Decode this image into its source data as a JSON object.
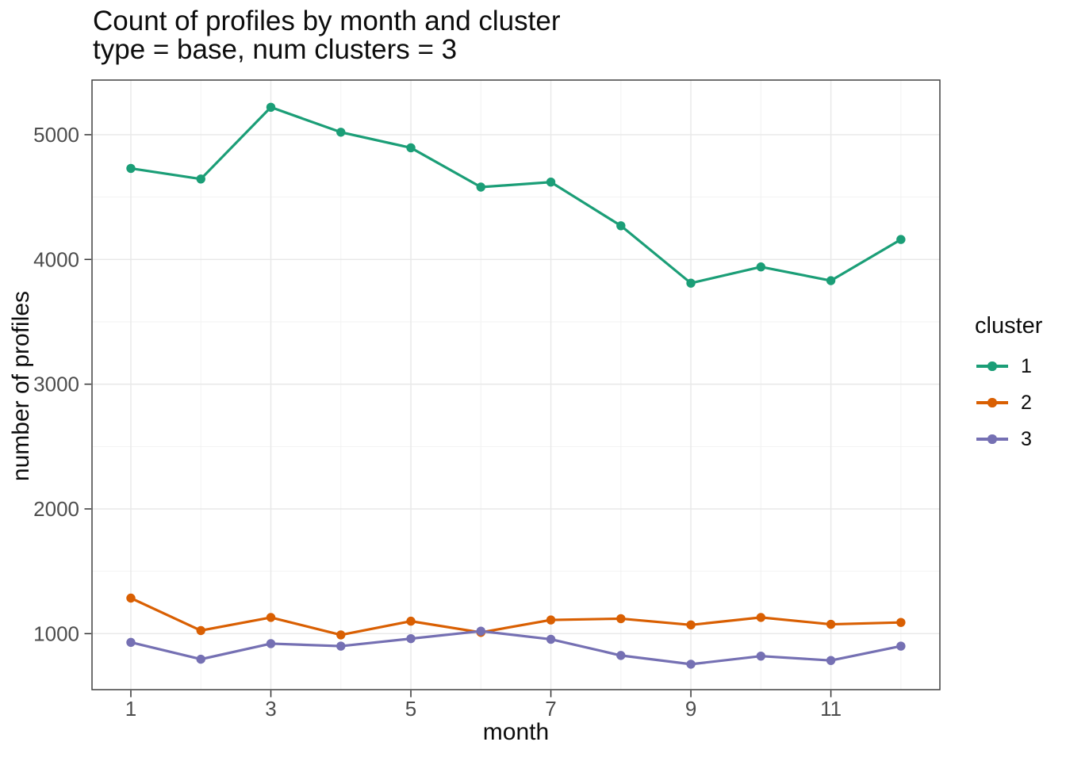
{
  "header": {
    "title": "Count of profiles by month and cluster",
    "subtitle": "type = base, num clusters = 3"
  },
  "chart_data": {
    "type": "line",
    "title": "Count of profiles by month and cluster",
    "subtitle": "type = base, num clusters = 3",
    "xlabel": "month",
    "ylabel": "number of profiles",
    "x": [
      1,
      2,
      3,
      4,
      5,
      6,
      7,
      8,
      9,
      10,
      11,
      12
    ],
    "series": [
      {
        "label": "1",
        "color": "#1B9E77",
        "values": [
          4730,
          4645,
          5220,
          5020,
          4895,
          4580,
          4620,
          4270,
          3810,
          3940,
          3830,
          4160
        ]
      },
      {
        "label": "2",
        "color": "#D95F02",
        "values": [
          1285,
          1025,
          1130,
          990,
          1100,
          1010,
          1110,
          1120,
          1070,
          1130,
          1075,
          1090
        ]
      },
      {
        "label": "3",
        "color": "#7570B3",
        "values": [
          930,
          795,
          920,
          900,
          960,
          1020,
          955,
          825,
          755,
          820,
          785,
          900
        ]
      }
    ],
    "x_ticks": [
      1,
      3,
      5,
      7,
      9,
      11
    ],
    "y_ticks": [
      1000,
      2000,
      3000,
      4000,
      5000
    ],
    "x_minor": [
      2,
      4,
      6,
      8,
      10,
      12
    ],
    "y_minor": [
      1500,
      2500,
      3500,
      4500
    ],
    "xlim": [
      0.445,
      12.557
    ],
    "ylim": [
      551,
      5438
    ],
    "grid": "on",
    "legend": {
      "title": "cluster",
      "position": "right"
    },
    "colors": {
      "panel_border": "#404040",
      "grid_major": "#e8e8e8",
      "grid_minor": "#f2f2f2",
      "tick_mark": "#333333",
      "tick_label": "#4d4d4d",
      "text": "#0d0d0d",
      "background": "#ffffff"
    }
  }
}
